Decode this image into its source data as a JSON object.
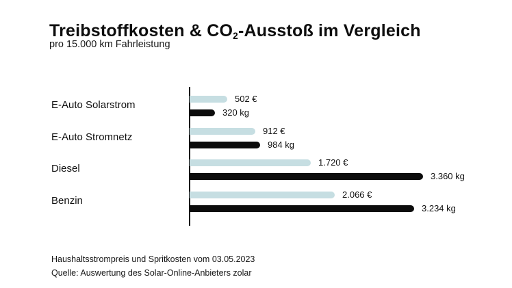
{
  "header": {
    "title_prefix": "Treibstoffkosten & CO",
    "title_subscript": "2",
    "title_suffix": "-Ausstoß im Vergleich",
    "subtitle": "pro 15.000 km Fahrleistung"
  },
  "chart_data": {
    "type": "bar",
    "orientation": "horizontal",
    "title": "Treibstoffkosten & CO₂-Ausstoß im Vergleich",
    "subtitle": "pro 15.000 km Fahrleistung",
    "categories": [
      "E-Auto Solarstrom",
      "E-Auto Stromnetz",
      "Diesel",
      "Benzin"
    ],
    "series": [
      {
        "id": "cost",
        "unit": "€",
        "color": "#c6dee2",
        "values": [
          502,
          912,
          1720,
          2066
        ],
        "labels": [
          "502 €",
          "912 €",
          "1.720 €",
          "2.066 €"
        ]
      },
      {
        "id": "co2",
        "unit": "kg",
        "color": "#0c0c0c",
        "values": [
          320,
          984,
          3360,
          3234
        ],
        "labels": [
          "320 kg",
          "984 kg",
          "3.360 kg",
          "3.234 kg"
        ]
      }
    ],
    "xlim": [
      0,
      3360
    ],
    "grid": false,
    "legend": false,
    "axis_color": "#141414"
  },
  "footer": {
    "line1": "Haushaltsstrompreis und Spritkosten vom 03.05.2023",
    "line2": "Quelle: Auswertung des Solar-Online-Anbieters zolar"
  }
}
